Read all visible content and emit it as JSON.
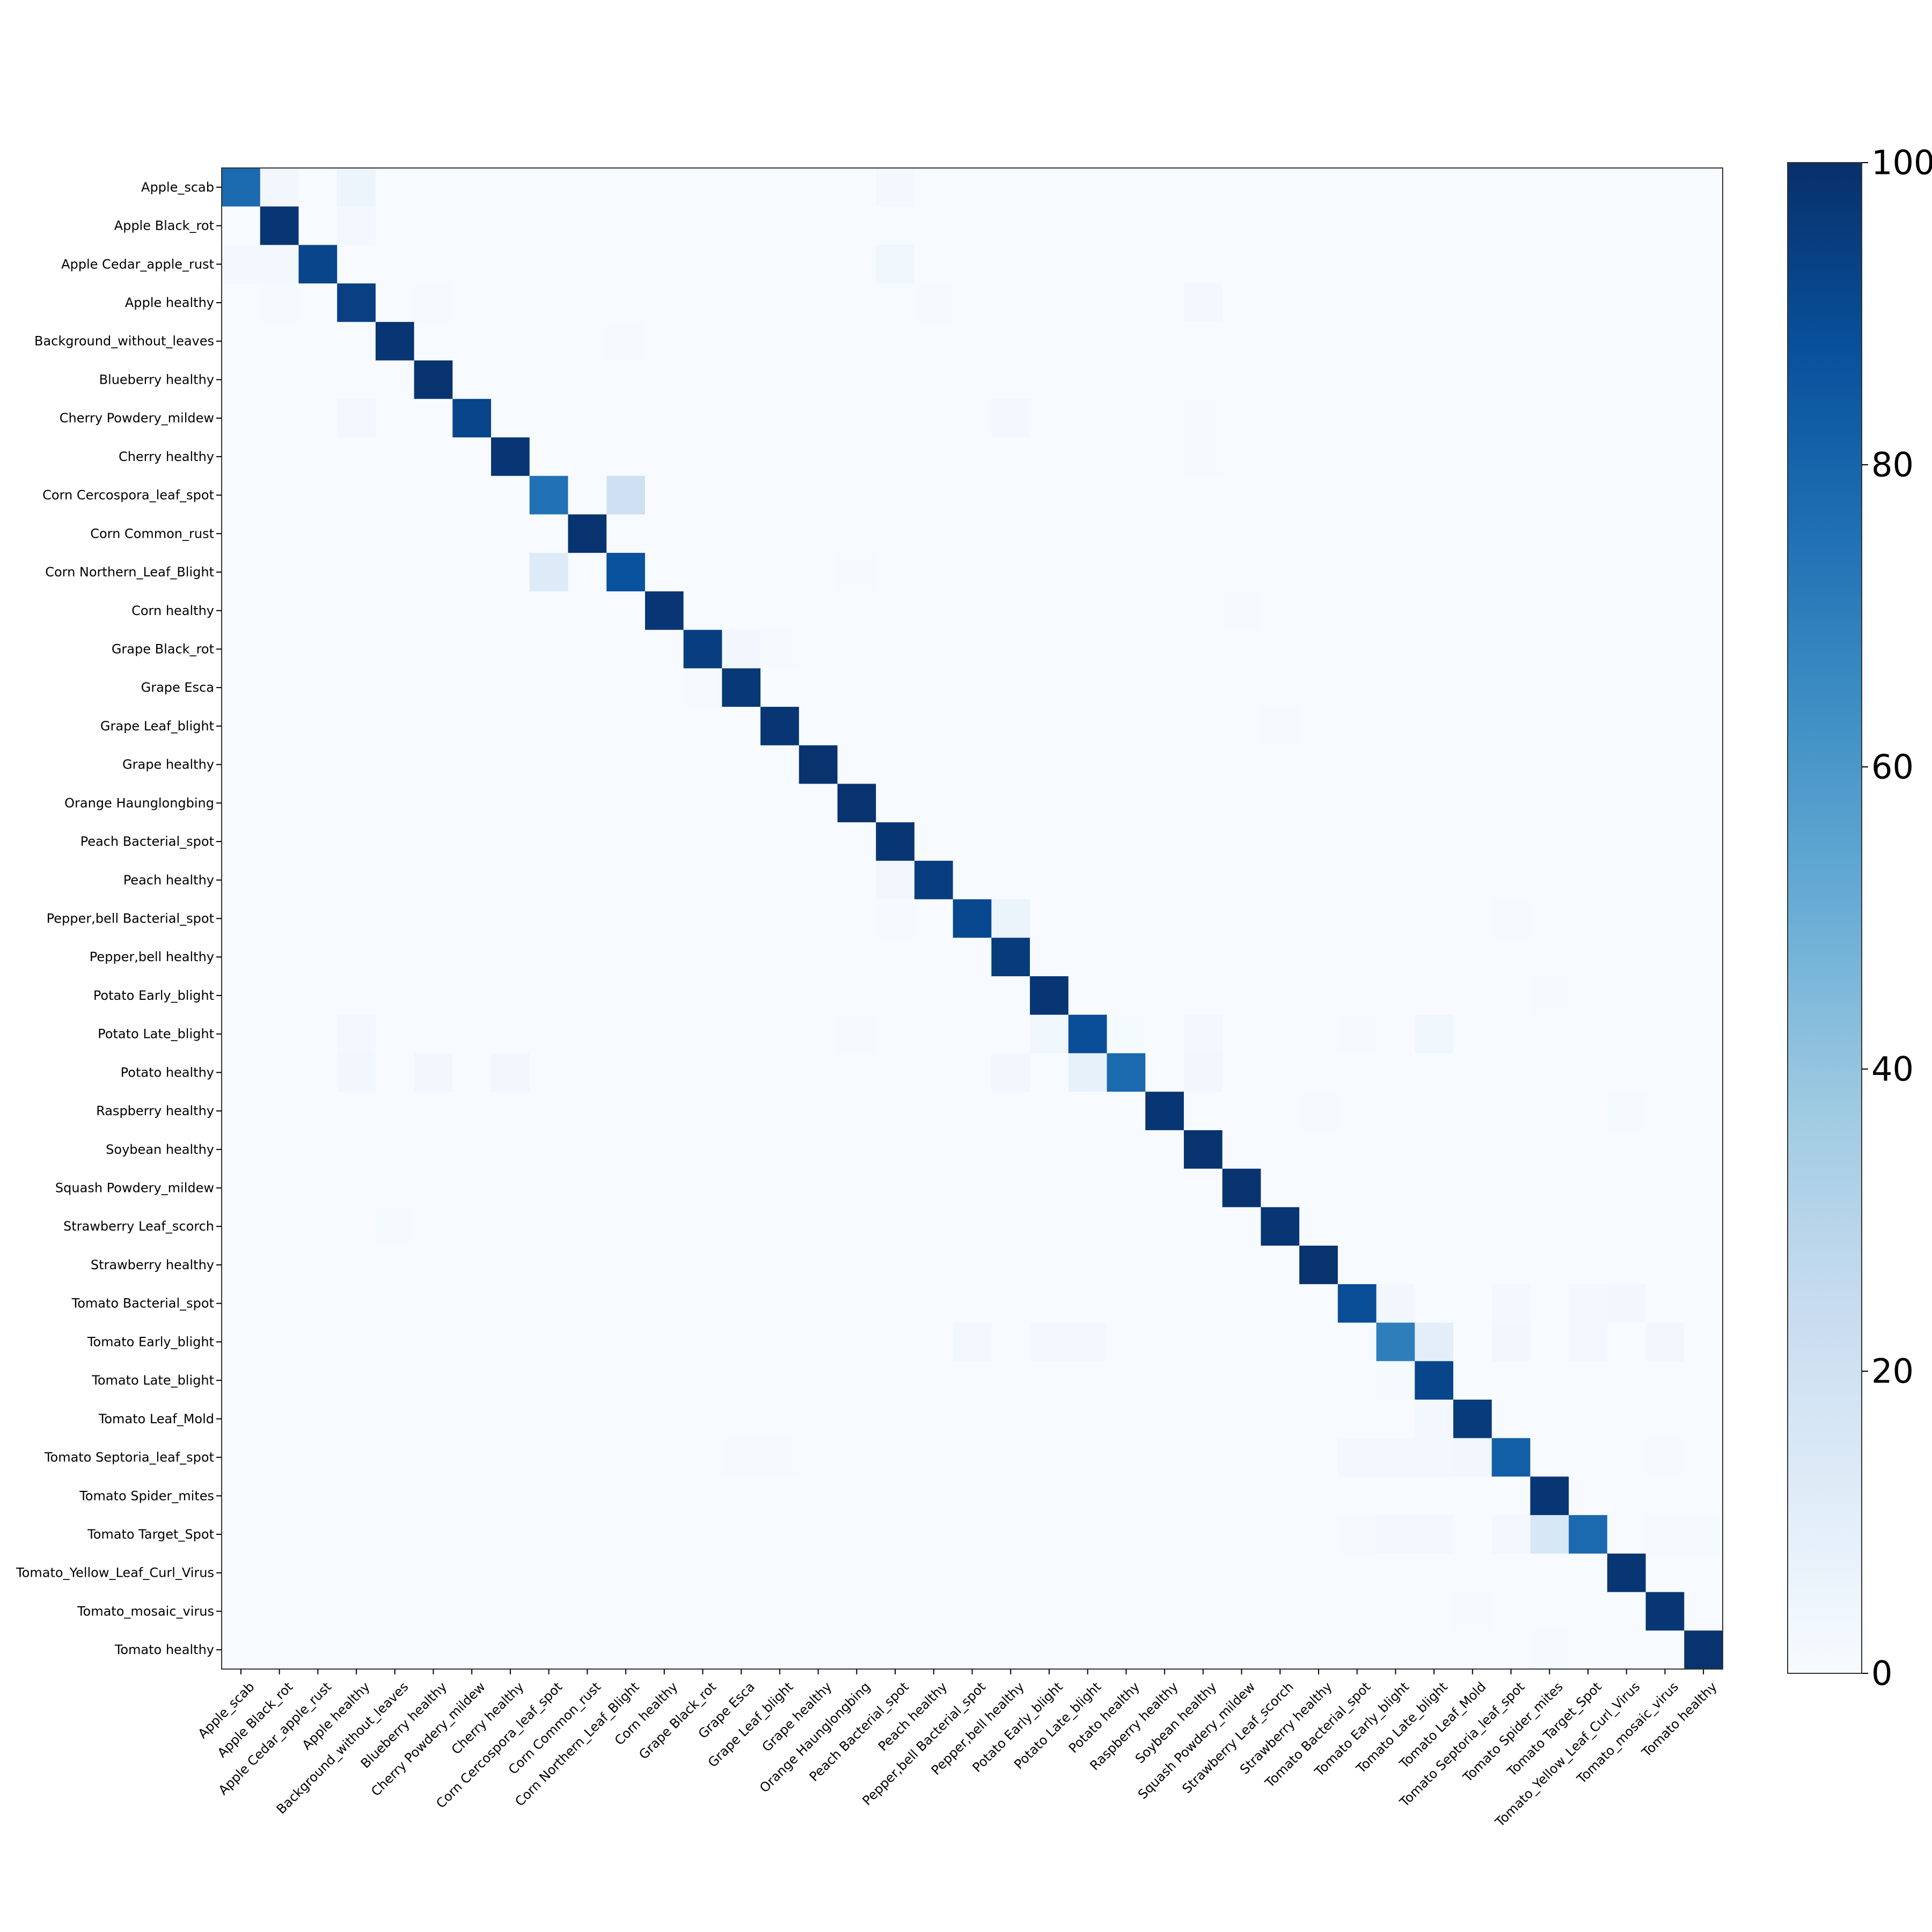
{
  "chart_data": {
    "type": "heatmap",
    "title": "",
    "xlabel": "",
    "ylabel": "",
    "colormap": "Blues",
    "value_range": [
      0,
      100
    ],
    "colorbar": {
      "ticks": [
        0,
        20,
        40,
        60,
        80,
        100
      ],
      "tick_labels": [
        "0",
        "20",
        "40",
        "60",
        "80",
        "100"
      ]
    },
    "categories": [
      "Apple_scab",
      "Apple Black_rot",
      "Apple Cedar_apple_rust",
      "Apple healthy",
      "Background_without_leaves",
      "Blueberry healthy",
      "Cherry Powdery_mildew",
      "Cherry healthy",
      "Corn Cercospora_leaf_spot",
      "Corn Common_rust",
      "Corn Northern_Leaf_Blight",
      "Corn healthy",
      "Grape Black_rot",
      "Grape Esca",
      "Grape Leaf_blight",
      "Grape healthy",
      "Orange Haunglongbing",
      "Peach Bacterial_spot",
      "Peach healthy",
      "Pepper,bell Bacterial_spot",
      "Pepper,bell healthy",
      "Potato Early_blight",
      "Potato Late_blight",
      "Potato healthy",
      "Raspberry healthy",
      "Soybean healthy",
      "Squash Powdery_mildew",
      "Strawberry Leaf_scorch",
      "Strawberry healthy",
      "Tomato Bacterial_spot",
      "Tomato Early_blight",
      "Tomato Late_blight",
      "Tomato Leaf_Mold",
      "Tomato Septoria_leaf_spot",
      "Tomato Spider_mites",
      "Tomato Target_Spot",
      "Tomato_Yellow_Leaf_Curl_Virus",
      "Tomato_mosaic_virus",
      "Tomato healthy"
    ],
    "diagonal": [
      78,
      98,
      92,
      94,
      98,
      99,
      92,
      98,
      75,
      99,
      87,
      98,
      95,
      97,
      98,
      99,
      99,
      98,
      95,
      91,
      96,
      98,
      89,
      78,
      98,
      99,
      99,
      98,
      99,
      89,
      70,
      92,
      96,
      82,
      98,
      78,
      98,
      98,
      99
    ],
    "off_diagonal": [
      {
        "row": 0,
        "col": 1,
        "value": 3
      },
      {
        "row": 0,
        "col": 3,
        "value": 5
      },
      {
        "row": 0,
        "col": 17,
        "value": 2
      },
      {
        "row": 1,
        "col": 3,
        "value": 2
      },
      {
        "row": 2,
        "col": 0,
        "value": 2
      },
      {
        "row": 2,
        "col": 1,
        "value": 2
      },
      {
        "row": 2,
        "col": 17,
        "value": 4
      },
      {
        "row": 3,
        "col": 1,
        "value": 1
      },
      {
        "row": 3,
        "col": 5,
        "value": 1
      },
      {
        "row": 3,
        "col": 18,
        "value": 1
      },
      {
        "row": 3,
        "col": 25,
        "value": 2
      },
      {
        "row": 4,
        "col": 10,
        "value": 1
      },
      {
        "row": 6,
        "col": 3,
        "value": 2
      },
      {
        "row": 6,
        "col": 20,
        "value": 2
      },
      {
        "row": 6,
        "col": 25,
        "value": 1
      },
      {
        "row": 7,
        "col": 25,
        "value": 1
      },
      {
        "row": 8,
        "col": 10,
        "value": 21
      },
      {
        "row": 10,
        "col": 8,
        "value": 13
      },
      {
        "row": 10,
        "col": 16,
        "value": 1
      },
      {
        "row": 11,
        "col": 26,
        "value": 1
      },
      {
        "row": 12,
        "col": 13,
        "value": 3
      },
      {
        "row": 12,
        "col": 14,
        "value": 1
      },
      {
        "row": 13,
        "col": 12,
        "value": 1
      },
      {
        "row": 14,
        "col": 27,
        "value": 1
      },
      {
        "row": 18,
        "col": 17,
        "value": 3
      },
      {
        "row": 19,
        "col": 20,
        "value": 6
      },
      {
        "row": 19,
        "col": 17,
        "value": 1
      },
      {
        "row": 19,
        "col": 33,
        "value": 1
      },
      {
        "row": 21,
        "col": 34,
        "value": 1
      },
      {
        "row": 22,
        "col": 21,
        "value": 4
      },
      {
        "row": 22,
        "col": 23,
        "value": 1
      },
      {
        "row": 22,
        "col": 31,
        "value": 4
      },
      {
        "row": 22,
        "col": 3,
        "value": 2
      },
      {
        "row": 22,
        "col": 16,
        "value": 1
      },
      {
        "row": 22,
        "col": 25,
        "value": 2
      },
      {
        "row": 22,
        "col": 29,
        "value": 1
      },
      {
        "row": 23,
        "col": 22,
        "value": 8
      },
      {
        "row": 23,
        "col": 3,
        "value": 3
      },
      {
        "row": 23,
        "col": 5,
        "value": 3
      },
      {
        "row": 23,
        "col": 7,
        "value": 3
      },
      {
        "row": 23,
        "col": 20,
        "value": 3
      },
      {
        "row": 23,
        "col": 25,
        "value": 3
      },
      {
        "row": 24,
        "col": 28,
        "value": 1
      },
      {
        "row": 24,
        "col": 36,
        "value": 1
      },
      {
        "row": 27,
        "col": 4,
        "value": 1
      },
      {
        "row": 29,
        "col": 30,
        "value": 3
      },
      {
        "row": 29,
        "col": 33,
        "value": 2
      },
      {
        "row": 29,
        "col": 35,
        "value": 2
      },
      {
        "row": 29,
        "col": 36,
        "value": 3
      },
      {
        "row": 30,
        "col": 31,
        "value": 10
      },
      {
        "row": 30,
        "col": 19,
        "value": 2
      },
      {
        "row": 30,
        "col": 21,
        "value": 2
      },
      {
        "row": 30,
        "col": 22,
        "value": 2
      },
      {
        "row": 30,
        "col": 33,
        "value": 3
      },
      {
        "row": 30,
        "col": 37,
        "value": 3
      },
      {
        "row": 30,
        "col": 35,
        "value": 2
      },
      {
        "row": 31,
        "col": 30,
        "value": 1
      },
      {
        "row": 32,
        "col": 31,
        "value": 2
      },
      {
        "row": 33,
        "col": 29,
        "value": 2
      },
      {
        "row": 33,
        "col": 30,
        "value": 2
      },
      {
        "row": 33,
        "col": 31,
        "value": 2
      },
      {
        "row": 33,
        "col": 32,
        "value": 3
      },
      {
        "row": 33,
        "col": 37,
        "value": 1
      },
      {
        "row": 33,
        "col": 13,
        "value": 1
      },
      {
        "row": 33,
        "col": 14,
        "value": 1
      },
      {
        "row": 35,
        "col": 34,
        "value": 16
      },
      {
        "row": 35,
        "col": 30,
        "value": 2
      },
      {
        "row": 35,
        "col": 31,
        "value": 2
      },
      {
        "row": 35,
        "col": 33,
        "value": 2
      },
      {
        "row": 35,
        "col": 29,
        "value": 1
      },
      {
        "row": 35,
        "col": 37,
        "value": 1
      },
      {
        "row": 35,
        "col": 38,
        "value": 1
      },
      {
        "row": 37,
        "col": 32,
        "value": 1
      },
      {
        "row": 38,
        "col": 34,
        "value": 1
      }
    ]
  }
}
